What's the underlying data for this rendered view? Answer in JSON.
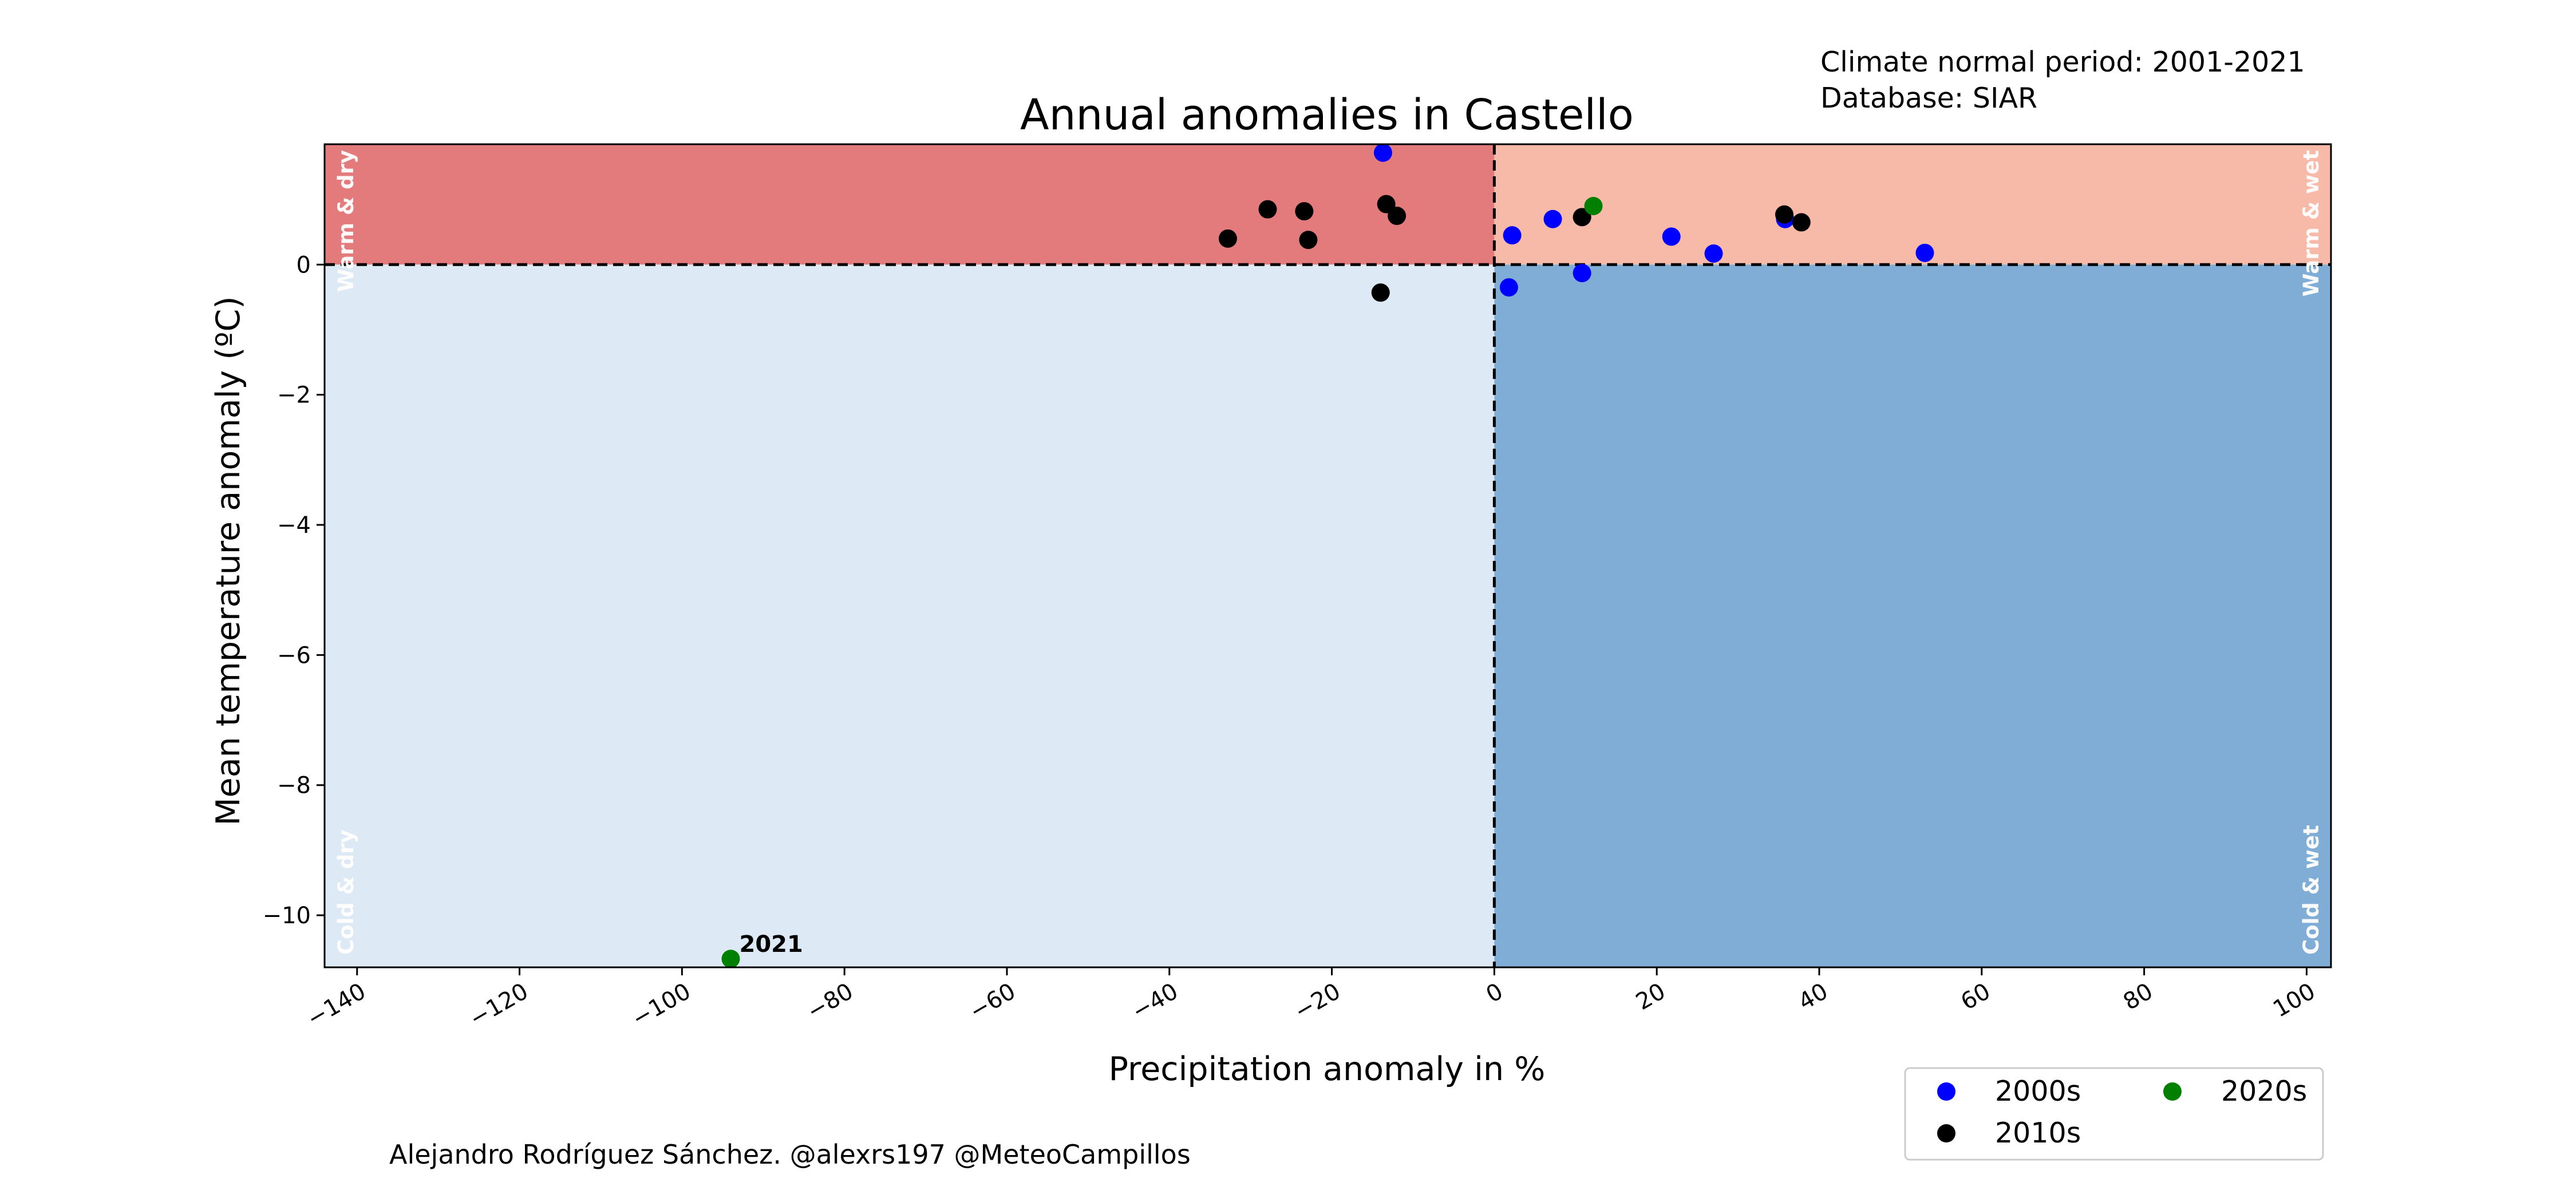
{
  "chart_data": {
    "type": "scatter",
    "title": "Annual anomalies in Castello",
    "xlabel": "Precipitation anomaly in %",
    "ylabel": "Mean temperature anomaly (ºC)",
    "xlim": [
      -144,
      103
    ],
    "ylim": [
      -10.8,
      1.85
    ],
    "x_ticks": [
      -140,
      -120,
      -100,
      -80,
      -60,
      -40,
      -20,
      0,
      20,
      40,
      60,
      80,
      100
    ],
    "x_tick_labels": [
      "−140",
      "−120",
      "−100",
      "−80",
      "−60",
      "−40",
      "−20",
      "0",
      "20",
      "40",
      "60",
      "80",
      "100"
    ],
    "y_ticks": [
      0,
      -2,
      -4,
      -6,
      -8,
      -10
    ],
    "y_tick_labels": [
      "0",
      "−2",
      "−4",
      "−6",
      "−8",
      "−10"
    ],
    "grid": false,
    "legend_position": "bottom-right, below plot",
    "quadrants": [
      {
        "name": "Warm & dry",
        "color": "#e37b7d"
      },
      {
        "name": "Warm & wet",
        "color": "#f7baa8"
      },
      {
        "name": "Cold & dry",
        "color": "#dde9f5"
      },
      {
        "name": "Cold & wet",
        "color": "#80add5"
      }
    ],
    "series": [
      {
        "name": "2000s",
        "color": "#0000ff",
        "points": [
          [
            -13.7,
            1.72
          ],
          [
            2.2,
            0.45
          ],
          [
            7.2,
            0.7
          ],
          [
            10.8,
            -0.13
          ],
          [
            1.8,
            -0.35
          ],
          [
            21.8,
            0.43
          ],
          [
            27.0,
            0.17
          ],
          [
            35.8,
            0.7
          ],
          [
            53.0,
            0.18
          ]
        ]
      },
      {
        "name": "2010s",
        "color": "#000000",
        "points": [
          [
            -32.8,
            0.4
          ],
          [
            -27.9,
            0.85
          ],
          [
            -23.4,
            0.82
          ],
          [
            -22.9,
            0.38
          ],
          [
            -13.3,
            0.93
          ],
          [
            -12.0,
            0.75
          ],
          [
            -14.0,
            -0.43
          ],
          [
            10.8,
            0.73
          ],
          [
            35.7,
            0.77
          ],
          [
            37.8,
            0.65
          ]
        ]
      },
      {
        "name": "2020s",
        "color": "#008000",
        "points": [
          [
            12.2,
            0.9
          ],
          [
            -94.0,
            -10.67
          ]
        ]
      }
    ],
    "annotations": [
      {
        "text": "2021",
        "x": -94.0,
        "y": -10.67
      }
    ]
  },
  "info": {
    "normal_period": "Climate normal period: 2001-2021",
    "database": "Database: SIAR"
  },
  "credit": "Alejandro Rodríguez Sánchez. @alexrs197 @MeteoCampillos"
}
